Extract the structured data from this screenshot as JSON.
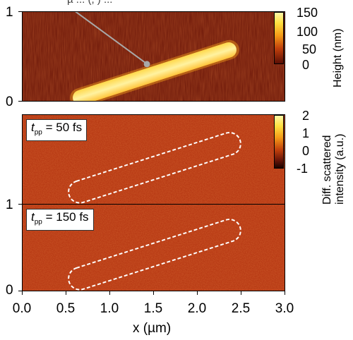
{
  "top_fragment_text": "µ ... (, ) ...",
  "panels": {
    "height": {
      "y_ticks": [
        "1",
        "0"
      ],
      "colorbar_ticks": [
        "150",
        "100",
        "50",
        "0"
      ],
      "colorbar_label": "Height (nm)"
    },
    "diff_50": {
      "y_ticks": [
        "1"
      ],
      "label_symbol": "t",
      "label_sub": "pp",
      "label_value": " = 50 fs",
      "colorbar_ticks": [
        "2",
        "1",
        "0",
        "-1"
      ],
      "colorbar_label_line1": "Diff. scattered",
      "colorbar_label_line2": "intensity (a.u.)"
    },
    "diff_150": {
      "y_ticks": [
        "1",
        "0"
      ],
      "label_symbol": "t",
      "label_sub": "pp",
      "label_value": " = 150 fs"
    }
  },
  "x_axis": {
    "ticks": [
      "0.0",
      "0.5",
      "1.0",
      "1.5",
      "2.0",
      "2.5",
      "3.0"
    ],
    "label": "x (µm)"
  },
  "colors": {
    "map_dark": "#5a0e05",
    "map_mid": "#a8290c",
    "rod_bright": "#ffe24a",
    "rod_glow": "#ffb020"
  }
}
